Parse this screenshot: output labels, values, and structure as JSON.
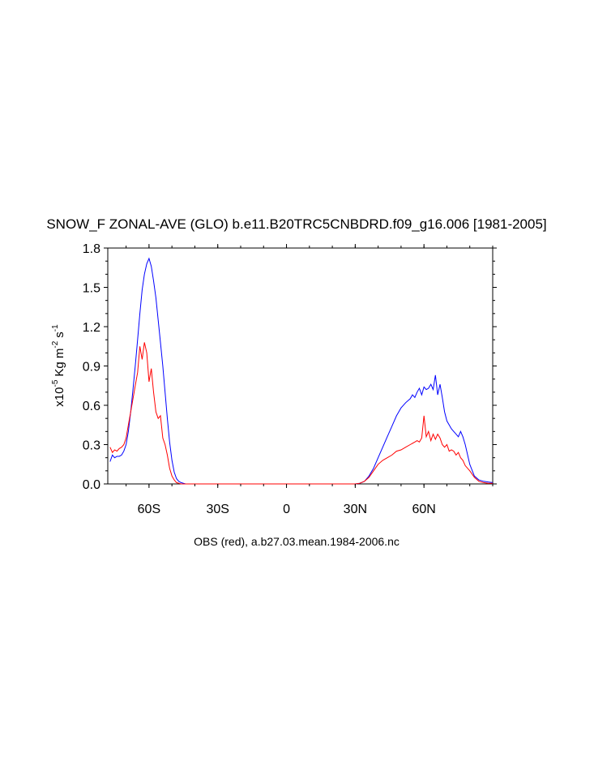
{
  "chart_data": {
    "type": "line",
    "title": "SNOW_F ZONAL-AVE (GLO) b.e11.B20TRC5CNBDRD.f09_g16.006 [1981-2005]",
    "ylabel_prefix": "x10",
    "ylabel_exp": "-5",
    "ylabel_units": "Kg m",
    "ylabel_m_exp": "-2",
    "ylabel_s": "s",
    "ylabel_s_exp": "-1",
    "caption": "OBS (red), a.b27.03.mean.1984-2006.nc",
    "xlim": [
      -78,
      90
    ],
    "ylim": [
      0,
      1.8
    ],
    "xticks": [
      {
        "value": -60,
        "label": "60S"
      },
      {
        "value": -30,
        "label": "30S"
      },
      {
        "value": 0,
        "label": "0"
      },
      {
        "value": 30,
        "label": "30N"
      },
      {
        "value": 60,
        "label": "60N"
      }
    ],
    "yticks": [
      {
        "value": 0.0,
        "label": "0.0"
      },
      {
        "value": 0.3,
        "label": "0.3"
      },
      {
        "value": 0.6,
        "label": "0.6"
      },
      {
        "value": 0.9,
        "label": "0.9"
      },
      {
        "value": 1.2,
        "label": "1.2"
      },
      {
        "value": 1.5,
        "label": "1.5"
      },
      {
        "value": 1.8,
        "label": "1.8"
      }
    ],
    "series": [
      {
        "color": "#0000ff",
        "x": [
          -77,
          -76,
          -75,
          -74,
          -73,
          -72,
          -71,
          -70,
          -69,
          -68,
          -67,
          -66,
          -65,
          -64,
          -63,
          -62,
          -61,
          -60,
          -59,
          -58,
          -57,
          -56,
          -55,
          -54,
          -53,
          -52,
          -51,
          -50,
          -49,
          -48,
          -47,
          -46,
          -45,
          -44,
          -42,
          -40,
          -30,
          0,
          30,
          32,
          34,
          36,
          38,
          40,
          42,
          44,
          46,
          48,
          50,
          52,
          54,
          55,
          56,
          57,
          58,
          59,
          60,
          61,
          62,
          63,
          64,
          65,
          66,
          67,
          68,
          69,
          70,
          71,
          72,
          73,
          74,
          75,
          76,
          77,
          78,
          80,
          82,
          84,
          86,
          88,
          90
        ],
        "y": [
          0.17,
          0.22,
          0.2,
          0.21,
          0.21,
          0.22,
          0.25,
          0.3,
          0.4,
          0.55,
          0.72,
          0.9,
          1.1,
          1.3,
          1.48,
          1.6,
          1.68,
          1.72,
          1.66,
          1.55,
          1.42,
          1.25,
          1.08,
          0.9,
          0.7,
          0.5,
          0.32,
          0.18,
          0.09,
          0.04,
          0.02,
          0.01,
          0.005,
          0.0,
          0.0,
          0.0,
          0.0,
          0.0,
          0.0,
          0.005,
          0.02,
          0.06,
          0.12,
          0.2,
          0.28,
          0.36,
          0.44,
          0.52,
          0.58,
          0.62,
          0.65,
          0.68,
          0.66,
          0.7,
          0.73,
          0.68,
          0.74,
          0.72,
          0.73,
          0.76,
          0.72,
          0.83,
          0.68,
          0.76,
          0.66,
          0.55,
          0.48,
          0.45,
          0.42,
          0.4,
          0.38,
          0.36,
          0.4,
          0.36,
          0.3,
          0.15,
          0.06,
          0.03,
          0.02,
          0.015,
          0.01
        ]
      },
      {
        "color": "#ff0000",
        "x": [
          -77,
          -76,
          -75,
          -74,
          -73,
          -72,
          -71,
          -70,
          -69,
          -68,
          -67,
          -66,
          -65,
          -64,
          -63,
          -62,
          -61,
          -60,
          -59,
          -58,
          -57,
          -56,
          -55,
          -54,
          -53,
          -52,
          -51,
          -50,
          -49,
          -48,
          -47,
          -46,
          -44,
          -40,
          -30,
          0,
          30,
          32,
          34,
          36,
          38,
          40,
          42,
          44,
          46,
          48,
          50,
          52,
          54,
          56,
          57,
          58,
          59,
          60,
          61,
          62,
          63,
          64,
          65,
          66,
          67,
          68,
          69,
          70,
          71,
          72,
          73,
          74,
          75,
          76,
          77,
          78,
          80,
          82,
          84,
          86,
          88,
          90
        ],
        "y": [
          0.28,
          0.24,
          0.26,
          0.25,
          0.27,
          0.28,
          0.3,
          0.35,
          0.45,
          0.55,
          0.65,
          0.75,
          0.85,
          1.05,
          0.95,
          1.08,
          1.0,
          0.78,
          0.88,
          0.7,
          0.55,
          0.5,
          0.52,
          0.35,
          0.3,
          0.22,
          0.12,
          0.06,
          0.03,
          0.01,
          0.005,
          0.0,
          0.0,
          0.0,
          0.0,
          0.0,
          0.0,
          0.005,
          0.02,
          0.05,
          0.1,
          0.15,
          0.18,
          0.2,
          0.22,
          0.25,
          0.26,
          0.28,
          0.3,
          0.32,
          0.33,
          0.32,
          0.35,
          0.52,
          0.36,
          0.4,
          0.33,
          0.38,
          0.34,
          0.38,
          0.35,
          0.3,
          0.28,
          0.3,
          0.25,
          0.26,
          0.25,
          0.22,
          0.24,
          0.2,
          0.18,
          0.14,
          0.1,
          0.05,
          0.02,
          0.01,
          0.005,
          0.005
        ]
      }
    ]
  }
}
